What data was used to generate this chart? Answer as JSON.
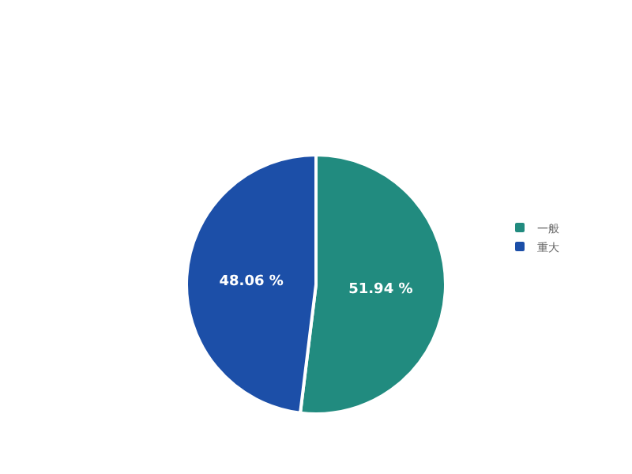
{
  "chart_data": {
    "type": "pie",
    "categories": [
      "一般",
      "重大"
    ],
    "values": [
      51.94,
      48.06
    ],
    "colors": [
      "#218b7f",
      "#1c4fa8"
    ],
    "value_labels": [
      "51.94 %",
      "48.06 %"
    ],
    "legend": "right"
  }
}
